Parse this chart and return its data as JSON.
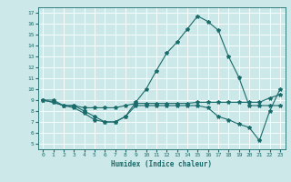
{
  "xlabel": "Humidex (Indice chaleur)",
  "ylabel": "",
  "xlim": [
    -0.5,
    23.5
  ],
  "ylim": [
    4.5,
    17.5
  ],
  "yticks": [
    5,
    6,
    7,
    8,
    9,
    10,
    11,
    12,
    13,
    14,
    15,
    16,
    17
  ],
  "xticks": [
    0,
    1,
    2,
    3,
    4,
    5,
    6,
    7,
    8,
    9,
    10,
    11,
    12,
    13,
    14,
    15,
    16,
    17,
    18,
    19,
    20,
    21,
    22,
    23
  ],
  "bg_color": "#cce8e8",
  "line_color": "#1a6b6b",
  "grid_color": "#ffffff",
  "line1_x": [
    0,
    1,
    2,
    3,
    4,
    5,
    6,
    7,
    8,
    9,
    10,
    11,
    12,
    13,
    14,
    15,
    16,
    17,
    18,
    19,
    20,
    21,
    22,
    23
  ],
  "line1_y": [
    9.0,
    9.0,
    8.5,
    8.5,
    8.0,
    7.5,
    7.0,
    7.0,
    7.5,
    8.8,
    10.0,
    11.7,
    13.3,
    14.3,
    15.5,
    16.7,
    16.2,
    15.4,
    13.0,
    11.1,
    8.5,
    8.5,
    8.5,
    8.5
  ],
  "line2_x": [
    0,
    1,
    2,
    3,
    4,
    5,
    6,
    7,
    8,
    9,
    10,
    11,
    12,
    13,
    14,
    15,
    16,
    17,
    18,
    19,
    20,
    21,
    22,
    23
  ],
  "line2_y": [
    9.0,
    8.8,
    8.5,
    8.5,
    8.3,
    8.3,
    8.3,
    8.3,
    8.5,
    8.7,
    8.7,
    8.7,
    8.7,
    8.7,
    8.7,
    8.8,
    8.8,
    8.8,
    8.8,
    8.8,
    8.8,
    8.8,
    9.2,
    9.5
  ],
  "line3_x": [
    0,
    1,
    2,
    3,
    4,
    5,
    6,
    7,
    8,
    9,
    10,
    11,
    12,
    13,
    14,
    15,
    16,
    17,
    18,
    19,
    20,
    21,
    22,
    23
  ],
  "line3_y": [
    9.0,
    8.8,
    8.5,
    8.3,
    7.8,
    7.2,
    7.0,
    7.0,
    7.5,
    8.5,
    8.5,
    8.5,
    8.5,
    8.5,
    8.5,
    8.5,
    8.3,
    7.5,
    7.2,
    6.8,
    6.5,
    5.3,
    8.0,
    10.0
  ]
}
